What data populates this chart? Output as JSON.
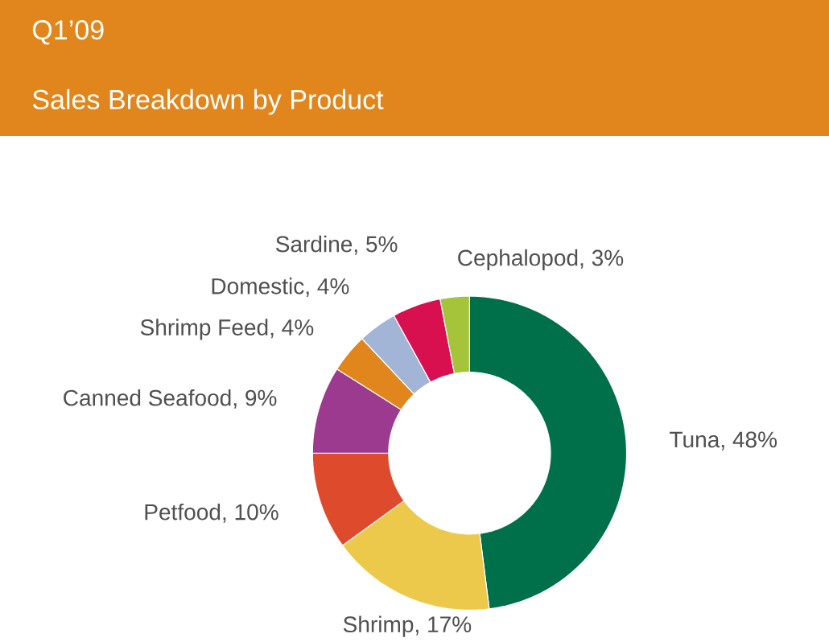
{
  "chart_data": {
    "type": "donut",
    "title": "Q1’09",
    "subtitle": "Sales Breakdown by Product",
    "categories": [
      "Tuna, 48%",
      "Shrimp, 17%",
      "Petfood, 10%",
      "Canned Seafood, 9%",
      "Shrimp Feed, 4%",
      "Domestic, 4%",
      "Sardine, 5%",
      "Cephalopod, 3%"
    ],
    "values": [
      48,
      17,
      10,
      9,
      4,
      4,
      5,
      3
    ],
    "colors": [
      "#00704a",
      "#ecc94b",
      "#de4a2c",
      "#9b3a8e",
      "#e0861c",
      "#a3b5d6",
      "#d81050",
      "#a6c43a"
    ]
  }
}
